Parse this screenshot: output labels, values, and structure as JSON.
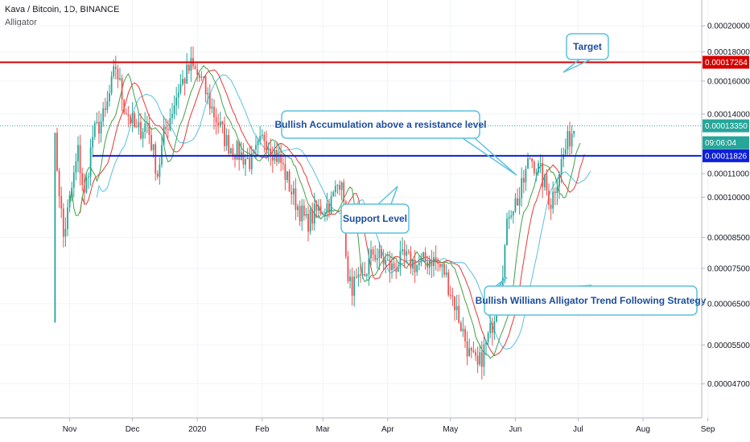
{
  "header": {
    "title": "Kava / Bitcoin, 1D, BINANCE",
    "indicator": "Alligator"
  },
  "colors": {
    "up_candle": "#26a69a",
    "down_candle": "#ef5350",
    "jaw": "#5bc0de",
    "teeth": "#e53935",
    "lips": "#43a047",
    "target_line": "#d50000",
    "support_line": "#0d1fd6",
    "current_price": "#26a69a",
    "callout_border": "#5bc0de",
    "callout_text": "#1e4d9a"
  },
  "chart_data": {
    "type": "candlestick",
    "x_tick_labels": [
      "Nov",
      "Dec",
      "2020",
      "Feb",
      "Mar",
      "Apr",
      "May",
      "Jun",
      "Jul",
      "Aug",
      "Sep"
    ],
    "y_tick_labels": [
      "0.00020000",
      "0.00018000",
      "0.00016000",
      "0.00014000",
      "0.00011000",
      "0.00010000",
      "0.00008500",
      "0.00007500",
      "0.00006500",
      "0.00005500",
      "0.00004700"
    ],
    "y_scale": "log",
    "y_range": [
      4.3e-05,
      0.000215
    ],
    "price_path": [
      [
        "2019-10-24",
        6.3e-05
      ],
      [
        "2019-10-25",
        0.000125
      ],
      [
        "2019-10-29",
        8.5e-05
      ],
      [
        "2019-11-05",
        0.00012
      ],
      [
        "2019-11-08",
        0.0001
      ],
      [
        "2019-11-12",
        0.000128
      ],
      [
        "2019-11-18",
        0.00014
      ],
      [
        "2019-11-23",
        0.00017
      ],
      [
        "2019-11-27",
        0.000145
      ],
      [
        "2019-12-03",
        0.00013
      ],
      [
        "2019-12-08",
        0.000135
      ],
      [
        "2019-12-13",
        0.00011
      ],
      [
        "2019-12-16",
        0.000128
      ],
      [
        "2019-12-23",
        0.000155
      ],
      [
        "2019-12-29",
        0.00017
      ],
      [
        "2020-01-03",
        0.00016
      ],
      [
        "2020-01-09",
        0.00014
      ],
      [
        "2020-01-15",
        0.000125
      ],
      [
        "2020-01-20",
        0.00012
      ],
      [
        "2020-01-27",
        0.000115
      ],
      [
        "2020-02-02",
        0.000128
      ],
      [
        "2020-02-10",
        0.000115
      ],
      [
        "2020-02-16",
        0.0001
      ],
      [
        "2020-02-22",
        9e-05
      ],
      [
        "2020-02-28",
        9.5e-05
      ],
      [
        "2020-03-05",
        9.8e-05
      ],
      [
        "2020-03-10",
        0.00011
      ],
      [
        "2020-03-13",
        7e-05
      ],
      [
        "2020-03-19",
        7e-05
      ],
      [
        "2020-03-25",
        8e-05
      ],
      [
        "2020-04-03",
        7.5e-05
      ],
      [
        "2020-04-09",
        7.8e-05
      ],
      [
        "2020-04-15",
        7.6e-05
      ],
      [
        "2020-04-22",
        7.8e-05
      ],
      [
        "2020-04-28",
        7.4e-05
      ],
      [
        "2020-05-03",
        6.5e-05
      ],
      [
        "2020-05-10",
        5.3e-05
      ],
      [
        "2020-05-14",
        5e-05
      ],
      [
        "2020-05-20",
        5.8e-05
      ],
      [
        "2020-05-25",
        7e-05
      ],
      [
        "2020-05-29",
        9.5e-05
      ],
      [
        "2020-06-03",
        0.0001
      ],
      [
        "2020-06-08",
        0.000118
      ],
      [
        "2020-06-13",
        0.00011
      ],
      [
        "2020-06-18",
        9.8e-05
      ],
      [
        "2020-06-22",
        0.000112
      ],
      [
        "2020-06-26",
        0.000125
      ],
      [
        "2020-06-29",
        0.000133
      ]
    ],
    "levels": [
      {
        "name": "target",
        "price": 0.00017264,
        "label": "0.00017264"
      },
      {
        "name": "current",
        "price": 0.0001335,
        "label": "0.00013350"
      },
      {
        "name": "support",
        "price": 0.00011826,
        "label": "0.00011826"
      }
    ],
    "countdown": "09:06:04",
    "annotations": [
      "Target",
      "Bullish Accumulation above a resistance level",
      "Support Level",
      "Bullish Willians Alligator Trend Following Strategy"
    ]
  }
}
